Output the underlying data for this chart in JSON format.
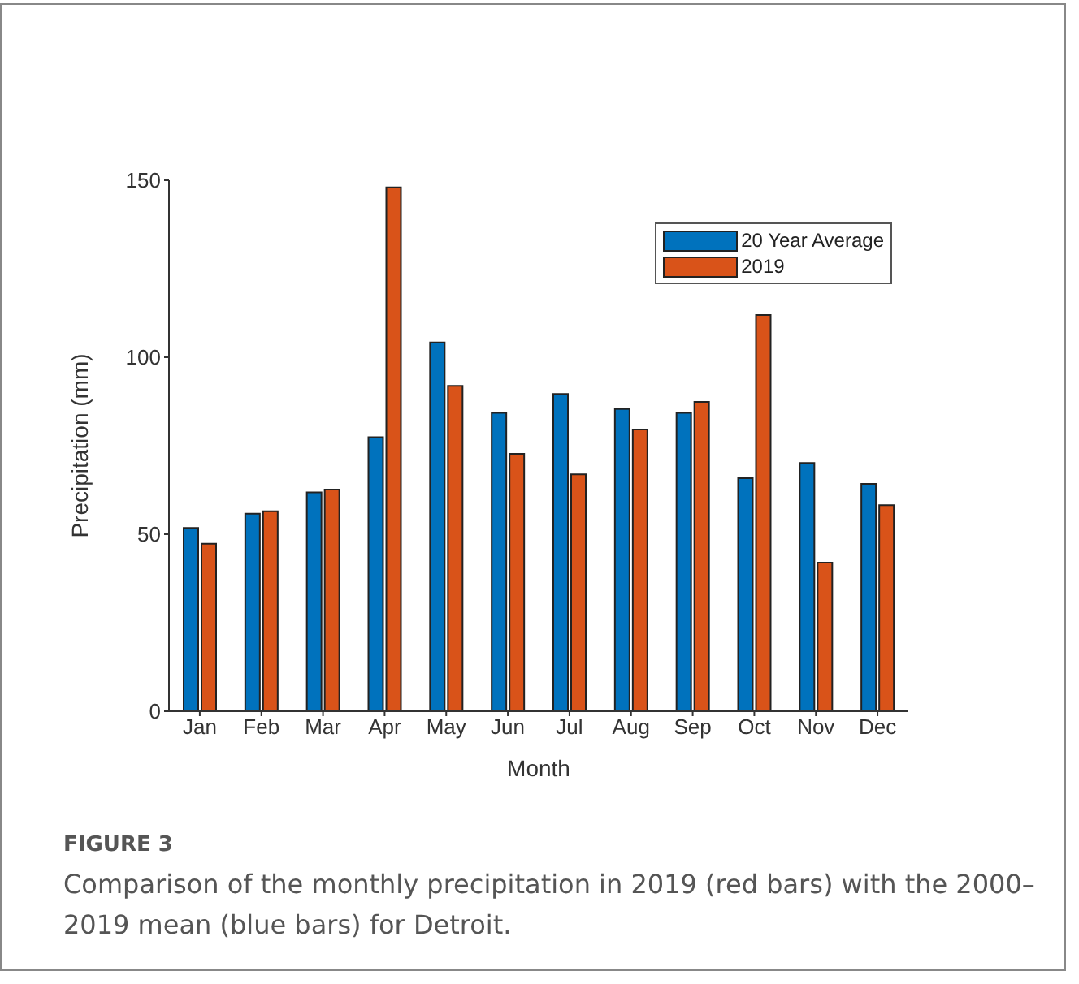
{
  "chart_data": {
    "type": "bar",
    "xlabel": "Month",
    "ylabel": "Precipitation (mm)",
    "categories": [
      "Jan",
      "Feb",
      "Mar",
      "Apr",
      "May",
      "Jun",
      "Jul",
      "Aug",
      "Sep",
      "Oct",
      "Nov",
      "Dec"
    ],
    "series": [
      {
        "name": "20 Year Average",
        "color": "#0072bd",
        "values": [
          51.8,
          55.8,
          61.8,
          77.4,
          104.2,
          84.3,
          89.6,
          85.4,
          84.3,
          65.8,
          70.1,
          64.2
        ]
      },
      {
        "name": "2019",
        "color": "#d95319",
        "values": [
          47.3,
          56.5,
          62.6,
          148,
          91.9,
          72.7,
          66.9,
          79.6,
          87.4,
          111.9,
          42,
          58.2
        ]
      }
    ],
    "ylim": [
      0,
      150
    ],
    "yticks": [
      0,
      50,
      100,
      150
    ],
    "grid": false,
    "legend": "top right",
    "annotations": [
      "FIGURE 3",
      "Comparison of the monthly precipitation in 2019 (red bars) with the 2000–2019 mean (blue bars) for Detroit."
    ]
  }
}
